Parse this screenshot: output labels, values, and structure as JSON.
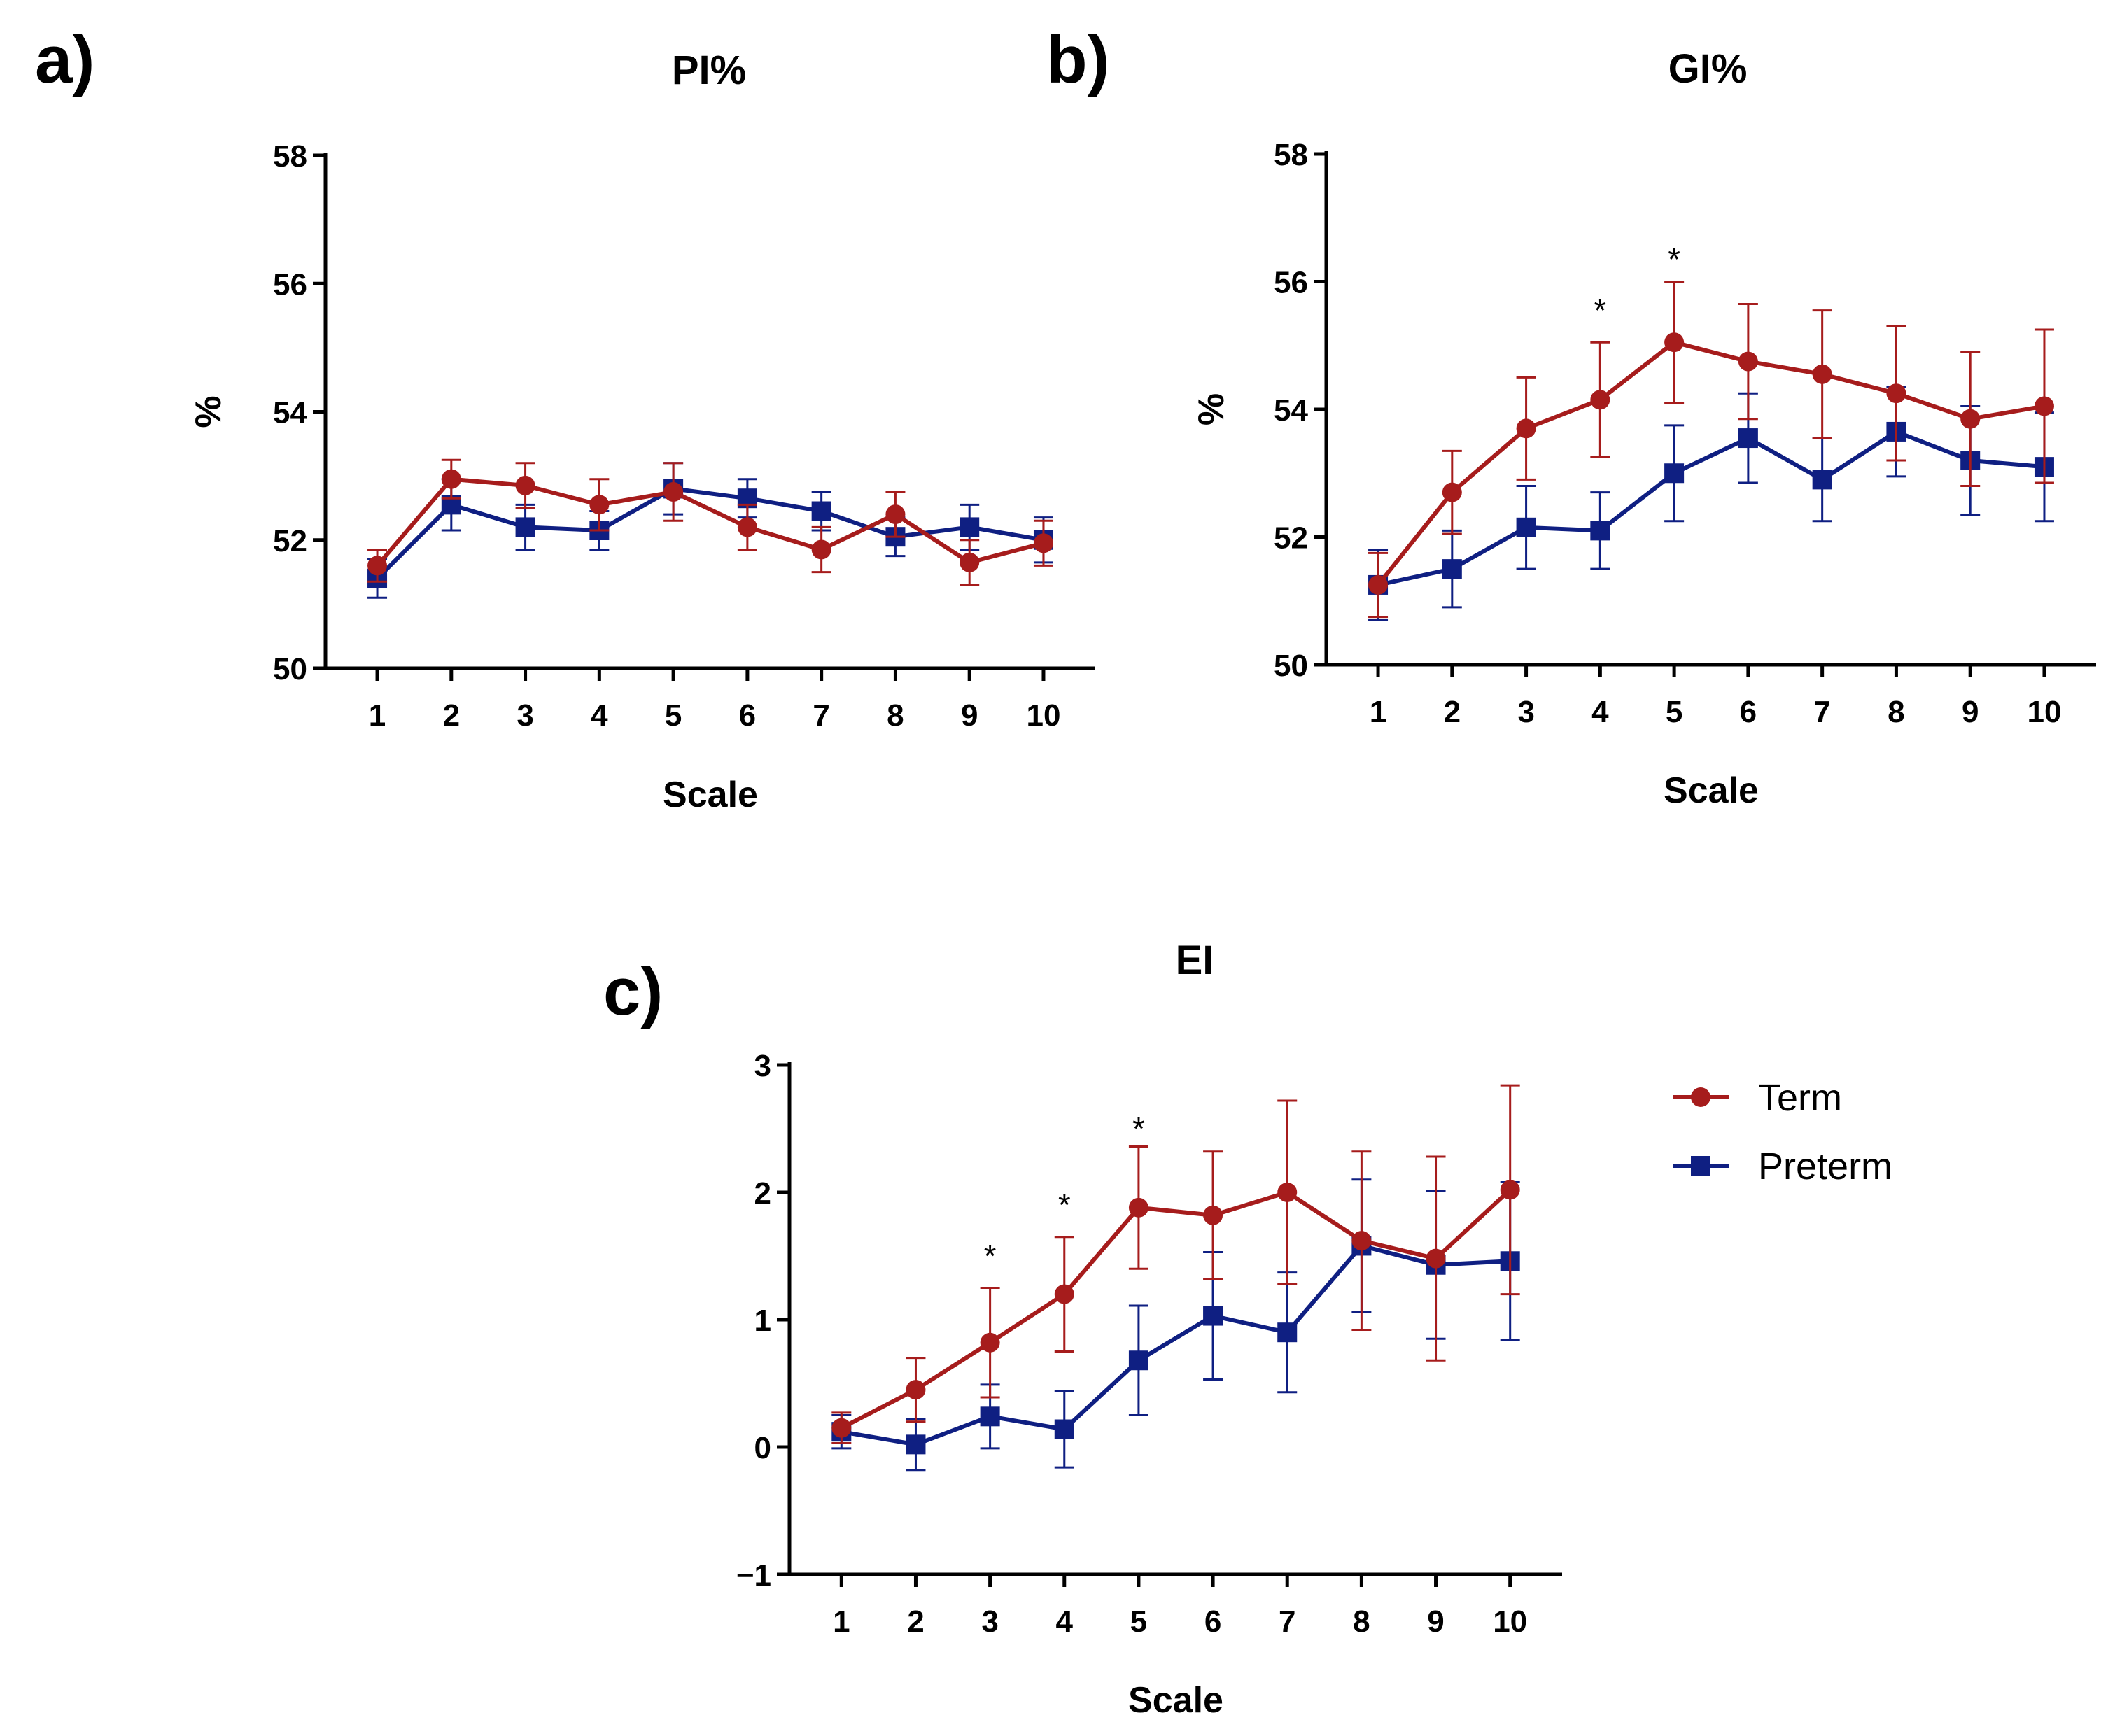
{
  "chart_data": [
    {
      "type": "line",
      "panel": "a)",
      "title": "PI%",
      "xlabel": "Scale",
      "ylabel": "%",
      "xlim": [
        0.3,
        10.7
      ],
      "ylim": [
        50,
        58
      ],
      "yticks": [
        50,
        52,
        54,
        56,
        58
      ],
      "ytick_labels": [
        "50",
        "52",
        "54",
        "56",
        "58"
      ],
      "categories": [
        "1",
        "2",
        "3",
        "4",
        "5",
        "6",
        "7",
        "8",
        "9",
        "10"
      ],
      "x": [
        1,
        2,
        3,
        4,
        5,
        6,
        7,
        8,
        9,
        10
      ],
      "series": [
        {
          "name": "Term",
          "color": "#a61c1c",
          "marker": "circle",
          "values": [
            51.6,
            52.95,
            52.85,
            52.55,
            52.75,
            52.2,
            51.85,
            52.4,
            51.65,
            51.95
          ],
          "errors": [
            0.25,
            0.3,
            0.35,
            0.4,
            0.45,
            0.35,
            0.35,
            0.35,
            0.35,
            0.35
          ]
        },
        {
          "name": "Preterm",
          "color": "#0f1f82",
          "marker": "square",
          "values": [
            51.4,
            52.55,
            52.2,
            52.15,
            52.8,
            52.65,
            52.45,
            52.05,
            52.2,
            52.0
          ],
          "errors": [
            0.3,
            0.4,
            0.35,
            0.3,
            0.4,
            0.3,
            0.3,
            0.3,
            0.35,
            0.35
          ]
        }
      ],
      "annotations": []
    },
    {
      "type": "line",
      "panel": "b)",
      "title": "GI%",
      "xlabel": "Scale",
      "ylabel": "%",
      "xlim": [
        0.3,
        10.7
      ],
      "ylim": [
        50,
        58
      ],
      "yticks": [
        50,
        52,
        54,
        56,
        58
      ],
      "ytick_labels": [
        "50",
        "52",
        "54",
        "56",
        "58"
      ],
      "categories": [
        "1",
        "2",
        "3",
        "4",
        "5",
        "6",
        "7",
        "8",
        "9",
        "10"
      ],
      "x": [
        1,
        2,
        3,
        4,
        5,
        6,
        7,
        8,
        9,
        10
      ],
      "series": [
        {
          "name": "Term",
          "color": "#a61c1c",
          "marker": "circle",
          "values": [
            51.25,
            52.7,
            53.7,
            54.15,
            55.05,
            54.75,
            54.55,
            54.25,
            53.85,
            54.05
          ],
          "errors": [
            0.5,
            0.65,
            0.8,
            0.9,
            0.95,
            0.9,
            1.0,
            1.05,
            1.05,
            1.2
          ]
        },
        {
          "name": "Preterm",
          "color": "#0f1f82",
          "marker": "square",
          "values": [
            51.25,
            51.5,
            52.15,
            52.1,
            53.0,
            53.55,
            52.9,
            53.65,
            53.2,
            53.1
          ],
          "errors": [
            0.55,
            0.6,
            0.65,
            0.6,
            0.75,
            0.7,
            0.65,
            0.7,
            0.85,
            0.85
          ]
        }
      ],
      "annotations": [
        {
          "text": "*",
          "x": 4,
          "y": 55.55
        },
        {
          "text": "*",
          "x": 5,
          "y": 56.35
        }
      ]
    },
    {
      "type": "line",
      "panel": "c)",
      "title": "EI",
      "xlabel": "Scale",
      "ylabel": "",
      "xlim": [
        0.3,
        10.7
      ],
      "ylim": [
        -1,
        3
      ],
      "yticks": [
        -1,
        0,
        1,
        2,
        3
      ],
      "ytick_labels": [
        "−1",
        "0",
        "1",
        "2",
        "3"
      ],
      "categories": [
        "1",
        "2",
        "3",
        "4",
        "5",
        "6",
        "7",
        "8",
        "9",
        "10"
      ],
      "x": [
        1,
        2,
        3,
        4,
        5,
        6,
        7,
        8,
        9,
        10
      ],
      "series": [
        {
          "name": "Term",
          "color": "#a61c1c",
          "marker": "circle",
          "values": [
            0.15,
            0.45,
            0.82,
            1.2,
            1.88,
            1.82,
            2.0,
            1.62,
            1.48,
            2.02
          ],
          "errors": [
            0.12,
            0.25,
            0.43,
            0.45,
            0.48,
            0.5,
            0.72,
            0.7,
            0.8,
            0.82
          ]
        },
        {
          "name": "Preterm",
          "color": "#0f1f82",
          "marker": "square",
          "values": [
            0.12,
            0.02,
            0.24,
            0.14,
            0.68,
            1.03,
            0.9,
            1.58,
            1.43,
            1.46
          ],
          "errors": [
            0.13,
            0.2,
            0.25,
            0.3,
            0.43,
            0.5,
            0.47,
            0.52,
            0.58,
            0.62
          ]
        }
      ],
      "annotations": [
        {
          "text": "*",
          "x": 3,
          "y": 1.5
        },
        {
          "text": "*",
          "x": 4,
          "y": 1.9
        },
        {
          "text": "*",
          "x": 5,
          "y": 2.5
        }
      ]
    }
  ],
  "legend": {
    "placement": "right of panel c",
    "items": [
      {
        "label": "Term",
        "color": "#a61c1c",
        "marker": "circle"
      },
      {
        "label": "Preterm",
        "color": "#0f1f82",
        "marker": "square"
      }
    ]
  }
}
